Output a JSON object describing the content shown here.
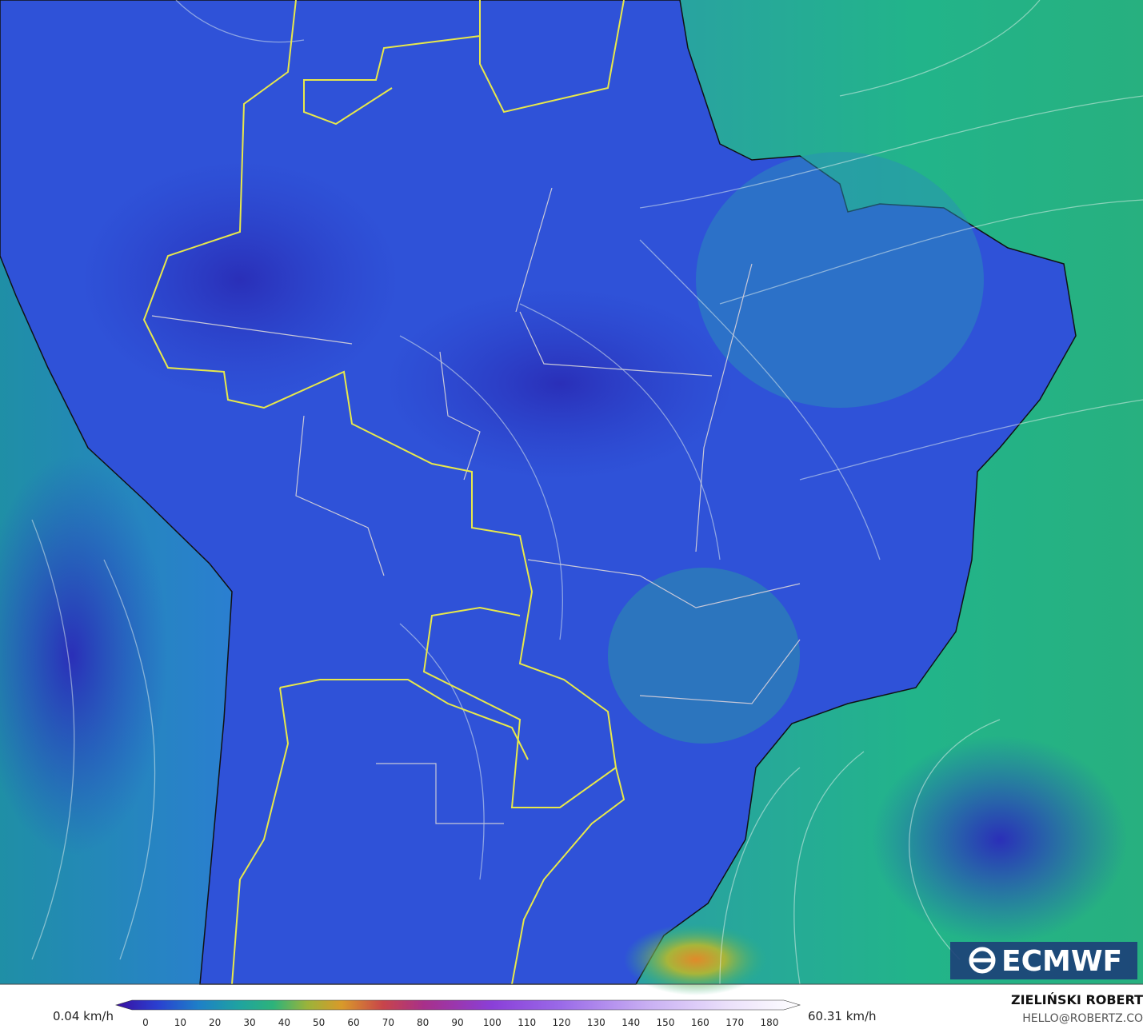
{
  "logo": "ECMWF",
  "legend": {
    "min_label": "0.04 km/h",
    "max_label": "60.31 km/h",
    "ticks": [
      0,
      10,
      20,
      30,
      40,
      50,
      60,
      70,
      80,
      90,
      100,
      110,
      120,
      130,
      140,
      150,
      160,
      170,
      180
    ]
  },
  "credit": {
    "name": "ZIELIŃSKI ROBERT",
    "contact": "HELLO@ROBERTZ.CO"
  }
}
